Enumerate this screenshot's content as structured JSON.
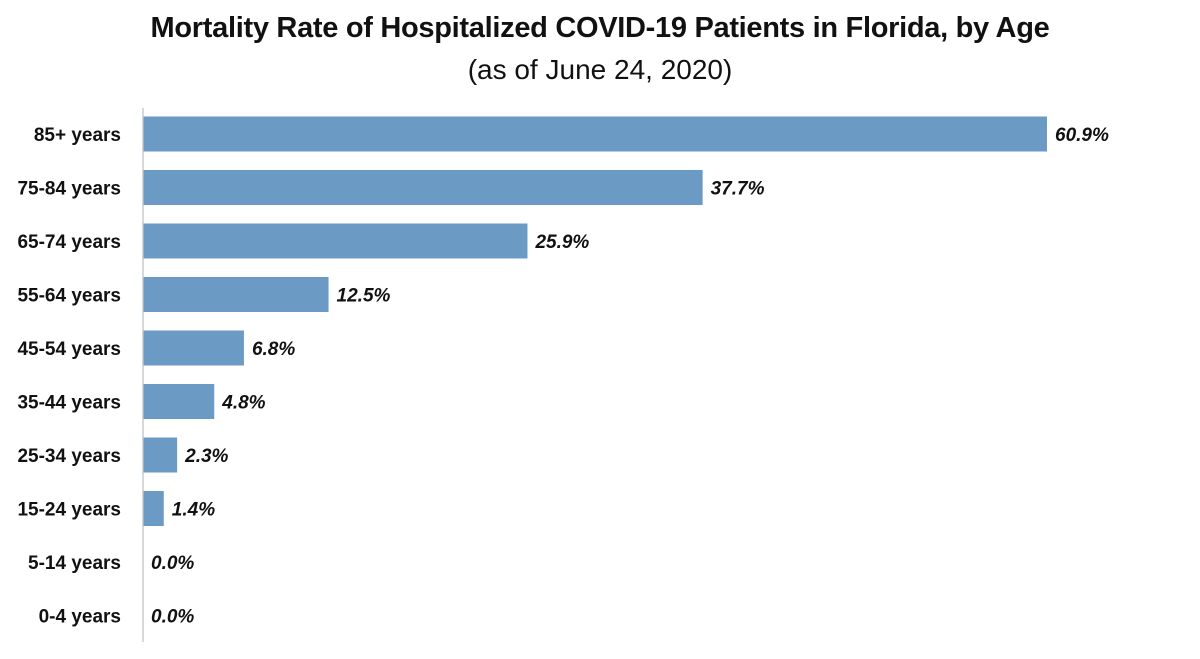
{
  "chart_data": {
    "type": "bar",
    "orientation": "horizontal",
    "title": "Mortality Rate of Hospitalized COVID-19 Patients in Florida, by Age",
    "subtitle": "(as of June 24, 2020)",
    "categories": [
      "85+ years",
      "75-84 years",
      "65-74 years",
      "55-64 years",
      "45-54 years",
      "35-44 years",
      "25-34 years",
      "15-24 years",
      "5-14 years",
      "0-4 years"
    ],
    "values": [
      60.9,
      37.7,
      25.9,
      12.5,
      6.8,
      4.8,
      2.3,
      1.4,
      0.0,
      0.0
    ],
    "data_labels": [
      "60.9%",
      "37.7%",
      "25.9%",
      "12.5%",
      "6.8%",
      "4.8%",
      "2.3%",
      "1.4%",
      "0.0%",
      "0.0%"
    ],
    "xlim": [
      0,
      60.9
    ],
    "grid": false,
    "legend": "none",
    "colors": {
      "bar": "#6b9ac4",
      "axis": "#bfbfbf",
      "text": "#111111"
    }
  }
}
